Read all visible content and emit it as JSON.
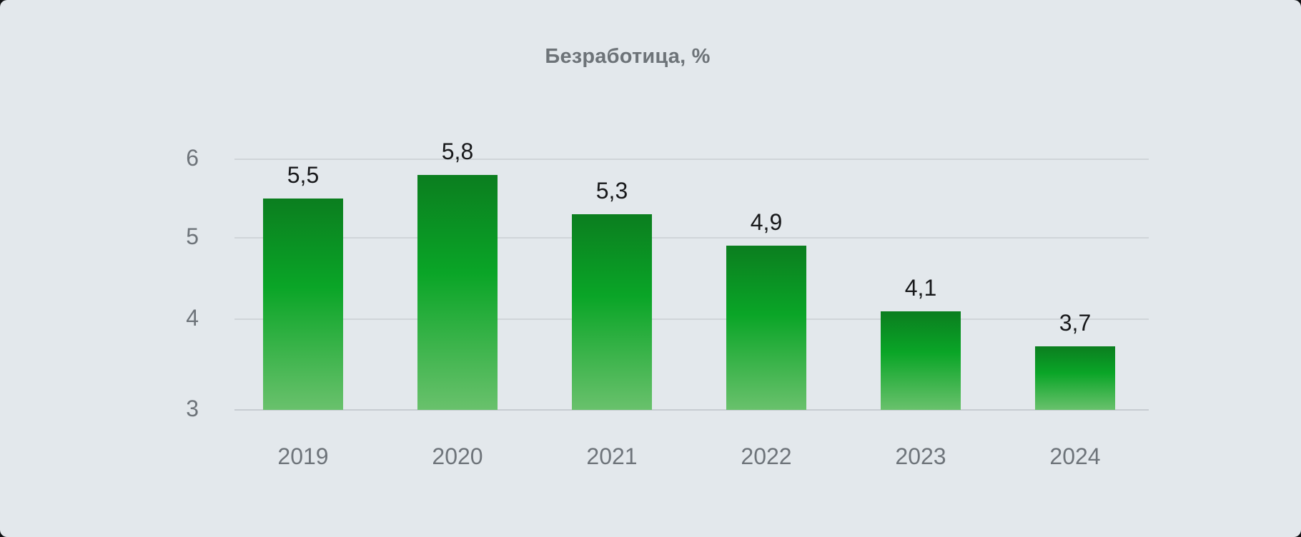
{
  "title": "Безработица, %",
  "panel": {
    "background": "#e3e8ec"
  },
  "chart_data": {
    "type": "bar",
    "title": "Безработица, %",
    "categories": [
      "2019",
      "2020",
      "2021",
      "2022",
      "2023",
      "2024"
    ],
    "values": [
      5.5,
      5.8,
      5.3,
      4.9,
      4.1,
      3.7
    ],
    "value_labels": [
      "5,5",
      "5,8",
      "5,3",
      "4,9",
      "4,1",
      "3,7"
    ],
    "series_name": "Безработица",
    "unit": "%",
    "decimal_separator": ",",
    "xlabel": "",
    "ylabel": "",
    "ylim": [
      3,
      6
    ],
    "yticks": [
      3,
      4,
      5,
      6
    ],
    "ytick_labels": [
      "3",
      "4",
      "5",
      "6"
    ],
    "grid": true,
    "legend": false,
    "colors": {
      "bar_gradient_top": "#0b7e1f",
      "bar_gradient_mid": "#0aa527",
      "bar_gradient_bottom": "#69c16c",
      "gridline": "#d0d5d9",
      "baseline": "#c7ccd1",
      "axis_text": "#6e747a",
      "value_text": "#17181a",
      "title_text": "#6d7378",
      "panel_background": "#e3e8ec"
    }
  }
}
